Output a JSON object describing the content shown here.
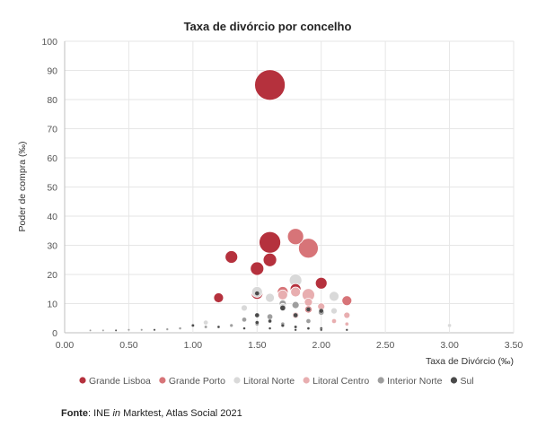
{
  "chart_data": {
    "type": "scatter",
    "title": "Taxa de divórcio por concelho",
    "xlabel": "Taxa de Divórcio (‰)",
    "ylabel": "Poder de compra (‰)",
    "xlim": [
      0,
      3.5
    ],
    "ylim": [
      0,
      100
    ],
    "x_ticks": [
      "0.00",
      "0.50",
      "1.00",
      "1.50",
      "2.00",
      "2.50",
      "3.00",
      "3.50"
    ],
    "y_ticks": [
      "0",
      "10",
      "20",
      "30",
      "40",
      "50",
      "60",
      "70",
      "80",
      "90",
      "100"
    ],
    "grid": true,
    "legend_position": "bottom",
    "series": [
      {
        "name": "Grande Lisboa",
        "color": "#b5313d",
        "points": [
          {
            "x": 1.6,
            "y": 85,
            "size": 17
          },
          {
            "x": 1.6,
            "y": 31,
            "size": 12
          },
          {
            "x": 1.3,
            "y": 26,
            "size": 7
          },
          {
            "x": 1.6,
            "y": 25,
            "size": 7.5
          },
          {
            "x": 1.5,
            "y": 22,
            "size": 7.5
          },
          {
            "x": 1.2,
            "y": 12,
            "size": 5.5
          },
          {
            "x": 2.0,
            "y": 17,
            "size": 6.5
          },
          {
            "x": 1.5,
            "y": 13.5,
            "size": 6.5
          },
          {
            "x": 1.8,
            "y": 15,
            "size": 6
          }
        ]
      },
      {
        "name": "Grande Porto",
        "color": "#d77478",
        "points": [
          {
            "x": 1.8,
            "y": 33,
            "size": 9
          },
          {
            "x": 1.9,
            "y": 29,
            "size": 11
          },
          {
            "x": 1.7,
            "y": 14,
            "size": 6
          },
          {
            "x": 2.2,
            "y": 11,
            "size": 5.5
          },
          {
            "x": 1.9,
            "y": 8,
            "size": 4
          }
        ]
      },
      {
        "name": "Litoral Norte",
        "color": "#d9d9d9",
        "points": [
          {
            "x": 1.8,
            "y": 18,
            "size": 7
          },
          {
            "x": 2.1,
            "y": 12.5,
            "size": 5.5
          },
          {
            "x": 1.6,
            "y": 12,
            "size": 5
          },
          {
            "x": 1.5,
            "y": 14,
            "size": 6
          },
          {
            "x": 1.4,
            "y": 8.5,
            "size": 3.5
          },
          {
            "x": 2.1,
            "y": 7.5,
            "size": 3.5
          },
          {
            "x": 1.7,
            "y": 9,
            "size": 3.5
          },
          {
            "x": 1.1,
            "y": 3.5,
            "size": 2.5
          },
          {
            "x": 3.0,
            "y": 2.5,
            "size": 2
          }
        ]
      },
      {
        "name": "Litoral Centro",
        "color": "#e8aeb0",
        "points": [
          {
            "x": 1.9,
            "y": 13,
            "size": 7
          },
          {
            "x": 1.8,
            "y": 14,
            "size": 5.5
          },
          {
            "x": 1.7,
            "y": 13,
            "size": 5.5
          },
          {
            "x": 2.0,
            "y": 9,
            "size": 4
          },
          {
            "x": 1.9,
            "y": 10.5,
            "size": 4.5
          },
          {
            "x": 2.2,
            "y": 6,
            "size": 3.5
          },
          {
            "x": 1.8,
            "y": 6,
            "size": 3.5
          },
          {
            "x": 2.1,
            "y": 4,
            "size": 2.5
          },
          {
            "x": 2.2,
            "y": 3,
            "size": 2
          }
        ]
      },
      {
        "name": "Interior Norte",
        "color": "#9e9e9e",
        "points": [
          {
            "x": 1.8,
            "y": 9.5,
            "size": 4
          },
          {
            "x": 1.7,
            "y": 10,
            "size": 4
          },
          {
            "x": 1.6,
            "y": 5.5,
            "size": 3
          },
          {
            "x": 2.0,
            "y": 7,
            "size": 3
          },
          {
            "x": 1.4,
            "y": 4.5,
            "size": 2.5
          },
          {
            "x": 1.5,
            "y": 3,
            "size": 2
          },
          {
            "x": 1.9,
            "y": 4,
            "size": 2.5
          },
          {
            "x": 1.7,
            "y": 3,
            "size": 2
          },
          {
            "x": 1.3,
            "y": 2.5,
            "size": 1.8
          },
          {
            "x": 1.1,
            "y": 2,
            "size": 1.6
          },
          {
            "x": 0.9,
            "y": 1.5,
            "size": 1.4
          },
          {
            "x": 0.8,
            "y": 1.2,
            "size": 1.3
          },
          {
            "x": 0.6,
            "y": 1,
            "size": 1.2
          },
          {
            "x": 0.5,
            "y": 1,
            "size": 1.2
          },
          {
            "x": 0.3,
            "y": 0.8,
            "size": 1.1
          },
          {
            "x": 0.2,
            "y": 0.8,
            "size": 1.1
          }
        ]
      },
      {
        "name": "Sul",
        "color": "#4a4a4a",
        "points": [
          {
            "x": 1.5,
            "y": 13.5,
            "size": 2.5
          },
          {
            "x": 1.7,
            "y": 8.5,
            "size": 3
          },
          {
            "x": 1.9,
            "y": 8,
            "size": 2.5
          },
          {
            "x": 2.0,
            "y": 7.5,
            "size": 2.5
          },
          {
            "x": 1.8,
            "y": 6,
            "size": 2.5
          },
          {
            "x": 1.5,
            "y": 6,
            "size": 2.5
          },
          {
            "x": 1.6,
            "y": 4,
            "size": 2
          },
          {
            "x": 1.5,
            "y": 3.5,
            "size": 2
          },
          {
            "x": 1.7,
            "y": 2.5,
            "size": 1.8
          },
          {
            "x": 1.8,
            "y": 2,
            "size": 1.6
          },
          {
            "x": 1.9,
            "y": 1.5,
            "size": 1.5
          },
          {
            "x": 2.0,
            "y": 1.5,
            "size": 1.5
          },
          {
            "x": 1.0,
            "y": 2.5,
            "size": 1.6
          },
          {
            "x": 1.2,
            "y": 2,
            "size": 1.5
          },
          {
            "x": 1.4,
            "y": 1.5,
            "size": 1.4
          },
          {
            "x": 1.6,
            "y": 1.5,
            "size": 1.4
          },
          {
            "x": 1.8,
            "y": 1,
            "size": 1.3
          },
          {
            "x": 2.0,
            "y": 1,
            "size": 1.3
          },
          {
            "x": 2.2,
            "y": 1,
            "size": 1.3
          },
          {
            "x": 0.7,
            "y": 1,
            "size": 1.2
          },
          {
            "x": 0.4,
            "y": 0.8,
            "size": 1.1
          }
        ]
      }
    ]
  },
  "source": {
    "label": "Fonte",
    "separator": ": ",
    "prefix": "INE ",
    "italic": "in",
    "suffix": " Marktest, Atlas Social 2021"
  }
}
